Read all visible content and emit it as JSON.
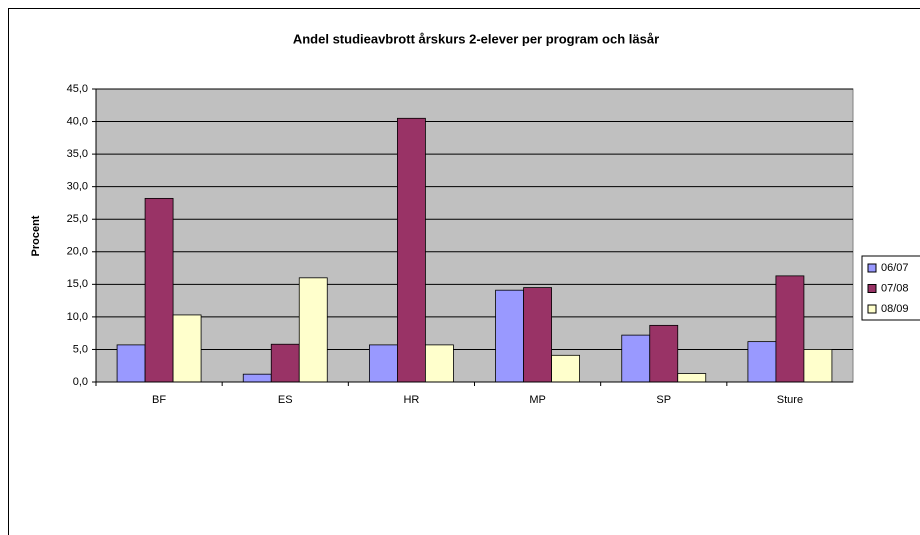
{
  "chart_data": {
    "type": "bar",
    "title": "Andel studieavbrott årskurs 2-elever per program och läsår",
    "y_label": "Procent",
    "categories": [
      "BF",
      "ES",
      "HR",
      "MP",
      "SP",
      "Sture"
    ],
    "series": [
      {
        "name": "06/07",
        "color": "#9999ff",
        "values": [
          5.7,
          1.2,
          5.7,
          14.1,
          7.2,
          6.2
        ]
      },
      {
        "name": "07/08",
        "color": "#993366",
        "values": [
          28.2,
          5.8,
          40.5,
          14.5,
          8.7,
          16.3
        ]
      },
      {
        "name": "08/09",
        "color": "#ffffcc",
        "values": [
          10.3,
          16.0,
          5.7,
          4.1,
          1.3,
          5.0
        ]
      }
    ],
    "ylim": [
      0,
      45
    ],
    "yticks": [
      {
        "value": 0,
        "label": "0,0"
      },
      {
        "value": 5,
        "label": "5,0"
      },
      {
        "value": 10,
        "label": "10,0"
      },
      {
        "value": 15,
        "label": "15,0"
      },
      {
        "value": 20,
        "label": "20,0"
      },
      {
        "value": 25,
        "label": "25,0"
      },
      {
        "value": 30,
        "label": "30,0"
      },
      {
        "value": 35,
        "label": "35,0"
      },
      {
        "value": 40,
        "label": "40,0"
      },
      {
        "value": 45,
        "label": "45,0"
      }
    ],
    "grid": true,
    "legend": "right"
  }
}
